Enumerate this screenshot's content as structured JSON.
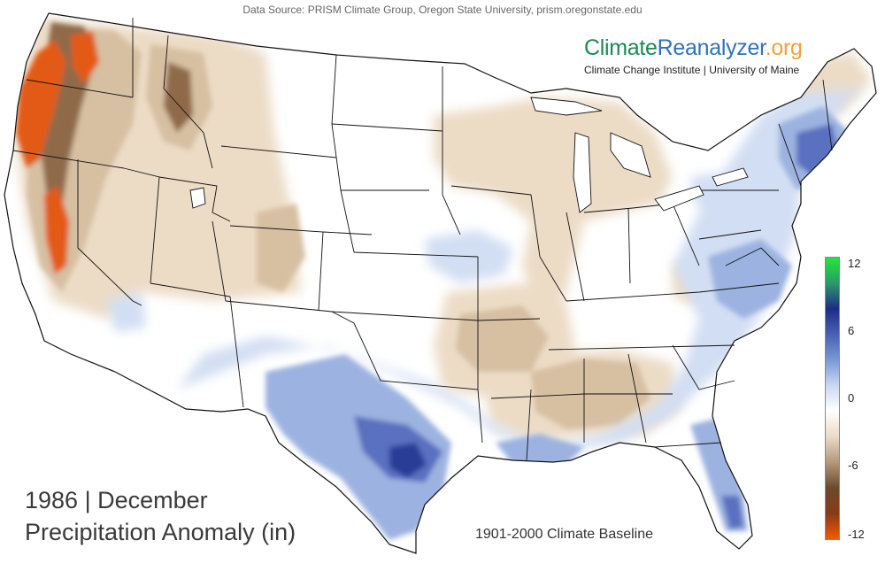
{
  "data_source": "Data Source: PRISM Climate Group, Oregon State University, prism.oregonstate.edu",
  "brand": {
    "part1": "Climate",
    "part2": "Reanalyzer",
    "part3": ".org",
    "subtitle": "Climate Change Institute | University of Maine"
  },
  "title": {
    "line1": "1986 | December",
    "line2": "Precipitation Anomaly (in)"
  },
  "baseline": "1901-2000 Climate Baseline",
  "legend": {
    "ticks": [
      "12",
      "6",
      "0",
      "-6",
      "-12"
    ],
    "min": -12,
    "max": 12,
    "colors": [
      "#f25a05",
      "#8b3a14",
      "#6b4a2c",
      "#b5977a",
      "#eadac8",
      "#ffffff",
      "#c9d9f2",
      "#7a98d8",
      "#4a5fb8",
      "#1c2c8a",
      "#2a9a6a",
      "#27e636"
    ]
  },
  "colors": {
    "land": "#ffffff",
    "dry_light": "#ecdcc6",
    "dry_medium": "#d7bfa2",
    "dry_dark": "#8f6a4a",
    "dry_extreme": "#e35a18",
    "wet_light": "#d2def3",
    "wet_medium": "#9cb2e0",
    "wet_dark": "#5a70c0",
    "wet_deep": "#2c3c96",
    "boundary": "#111111"
  }
}
